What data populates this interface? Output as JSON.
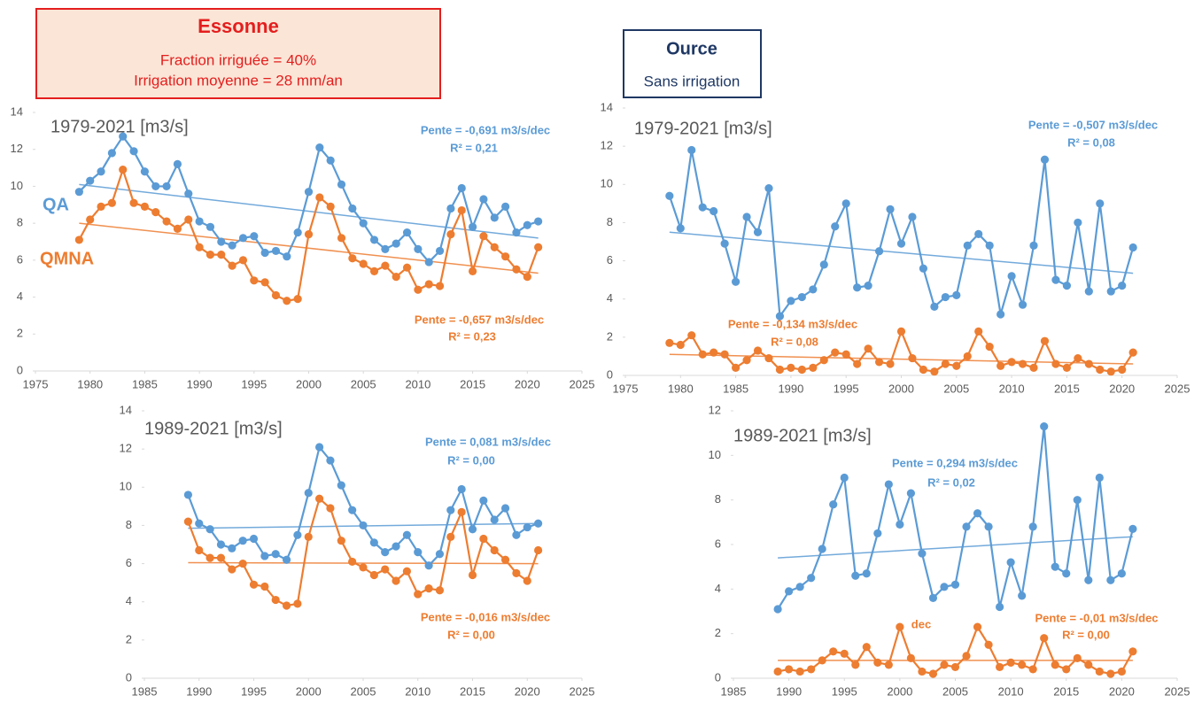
{
  "headers": [
    {
      "title": "Essonne",
      "lines": [
        "Fraction irriguée = 40%",
        "Irrigation moyenne = 28 mm/an"
      ]
    },
    {
      "title": "Ource",
      "lines": [
        "Sans irrigation"
      ]
    }
  ],
  "chart_data": [
    {
      "type": "line",
      "title": "1979-2021 [m3/s]",
      "x": [
        1979,
        1980,
        1981,
        1982,
        1983,
        1984,
        1985,
        1986,
        1987,
        1988,
        1989,
        1990,
        1991,
        1992,
        1993,
        1994,
        1995,
        1996,
        1997,
        1998,
        1999,
        2000,
        2001,
        2002,
        2003,
        2004,
        2005,
        2006,
        2007,
        2008,
        2009,
        2010,
        2011,
        2012,
        2013,
        2014,
        2015,
        2016,
        2017,
        2018,
        2019,
        2020,
        2021
      ],
      "series": [
        {
          "name": "QA",
          "color": "#5b9bd5",
          "values": [
            9.7,
            10.3,
            10.8,
            11.8,
            12.7,
            11.9,
            10.8,
            10.0,
            10.0,
            11.2,
            9.6,
            8.1,
            7.8,
            7.0,
            6.8,
            7.2,
            7.3,
            6.4,
            6.5,
            6.2,
            7.5,
            9.7,
            12.1,
            11.4,
            10.1,
            8.8,
            8.0,
            7.1,
            6.6,
            6.9,
            7.5,
            6.6,
            5.9,
            6.5,
            8.8,
            9.9,
            7.8,
            9.3,
            8.3,
            8.9,
            7.5,
            7.9,
            8.1
          ]
        },
        {
          "name": "QMNA",
          "color": "#ed7d31",
          "values": [
            7.1,
            8.2,
            8.9,
            9.1,
            10.9,
            9.1,
            8.9,
            8.6,
            8.1,
            7.7,
            8.2,
            6.7,
            6.3,
            6.3,
            5.7,
            6.0,
            4.9,
            4.8,
            4.1,
            3.8,
            3.9,
            7.4,
            9.4,
            8.9,
            7.2,
            6.1,
            5.8,
            5.4,
            5.7,
            5.1,
            5.6,
            4.4,
            4.7,
            4.6,
            7.4,
            8.7,
            5.4,
            7.3,
            6.7,
            6.2,
            5.5,
            5.1,
            6.7
          ]
        }
      ],
      "trendlines": [
        {
          "color": "#5b9bd5",
          "x": [
            1979,
            2021
          ],
          "values": [
            10.1,
            7.2
          ]
        },
        {
          "color": "#ed7d31",
          "x": [
            1979,
            2021
          ],
          "values": [
            8.0,
            5.3
          ]
        }
      ],
      "annotations": [
        {
          "text": "Pente =  -0,691 m3/s/dec",
          "color": "#5b9bd5"
        },
        {
          "text": "R² = 0,21",
          "color": "#5b9bd5"
        },
        {
          "text": "Pente = -0,657 m3/s/dec",
          "color": "#ed7d31"
        },
        {
          "text": "R² = 0,23",
          "color": "#ed7d31"
        }
      ],
      "xlim": [
        1975,
        2025
      ],
      "xticks": [
        1975,
        1980,
        1985,
        1990,
        1995,
        2000,
        2005,
        2010,
        2015,
        2020,
        2025
      ],
      "ylim": [
        0,
        14
      ],
      "yticks": [
        0,
        2,
        4,
        6,
        8,
        10,
        12,
        14
      ]
    },
    {
      "type": "line",
      "title": "1979-2021 [m3/s]",
      "x": [
        1979,
        1980,
        1981,
        1982,
        1983,
        1984,
        1985,
        1986,
        1987,
        1988,
        1989,
        1990,
        1991,
        1992,
        1993,
        1994,
        1995,
        1996,
        1997,
        1998,
        1999,
        2000,
        2001,
        2002,
        2003,
        2004,
        2005,
        2006,
        2007,
        2008,
        2009,
        2010,
        2011,
        2012,
        2013,
        2014,
        2015,
        2016,
        2017,
        2018,
        2019,
        2020,
        2021
      ],
      "series": [
        {
          "color": "#5b9bd5",
          "values": [
            9.4,
            7.7,
            11.8,
            8.8,
            8.6,
            6.9,
            4.9,
            8.3,
            7.5,
            9.8,
            3.1,
            3.9,
            4.1,
            4.5,
            5.8,
            7.8,
            9.0,
            4.6,
            4.7,
            6.5,
            8.7,
            6.9,
            8.3,
            5.6,
            3.6,
            4.1,
            4.2,
            6.8,
            7.4,
            6.8,
            3.2,
            5.2,
            3.7,
            6.8,
            11.3,
            5.0,
            4.7,
            8.0,
            4.4,
            9.0,
            4.4,
            4.7,
            6.7
          ]
        },
        {
          "color": "#ed7d31",
          "values": [
            1.7,
            1.6,
            2.1,
            1.1,
            1.2,
            1.1,
            0.4,
            0.8,
            1.3,
            0.9,
            0.3,
            0.4,
            0.3,
            0.4,
            0.8,
            1.2,
            1.1,
            0.6,
            1.4,
            0.7,
            0.6,
            2.3,
            0.9,
            0.3,
            0.2,
            0.6,
            0.5,
            1.0,
            2.3,
            1.5,
            0.5,
            0.7,
            0.6,
            0.4,
            1.8,
            0.6,
            0.4,
            0.9,
            0.6,
            0.3,
            0.2,
            0.3,
            1.2
          ]
        }
      ],
      "trendlines": [
        {
          "color": "#5b9bd5",
          "x": [
            1979,
            2021
          ],
          "values": [
            7.5,
            5.35
          ]
        },
        {
          "color": "#ed7d31",
          "x": [
            1979,
            2021
          ],
          "values": [
            1.1,
            0.6
          ]
        }
      ],
      "annotations": [
        {
          "text": "Pente = -0,507 m3/s/dec",
          "color": "#5b9bd5"
        },
        {
          "text": "R² = 0,08",
          "color": "#5b9bd5"
        },
        {
          "text": "Pente = -0,134 m3/s/dec",
          "color": "#ed7d31"
        },
        {
          "text": "R² = 0,08",
          "color": "#ed7d31"
        }
      ],
      "xlim": [
        1975,
        2025
      ],
      "xticks": [
        1975,
        1980,
        1985,
        1990,
        1995,
        2000,
        2005,
        2010,
        2015,
        2020,
        2025
      ],
      "ylim": [
        0,
        14
      ],
      "yticks": [
        0,
        2,
        4,
        6,
        8,
        10,
        12,
        14
      ]
    },
    {
      "type": "line",
      "title": "1989-2021 [m3/s]",
      "x": [
        1989,
        1990,
        1991,
        1992,
        1993,
        1994,
        1995,
        1996,
        1997,
        1998,
        1999,
        2000,
        2001,
        2002,
        2003,
        2004,
        2005,
        2006,
        2007,
        2008,
        2009,
        2010,
        2011,
        2012,
        2013,
        2014,
        2015,
        2016,
        2017,
        2018,
        2019,
        2020,
        2021
      ],
      "series": [
        {
          "color": "#5b9bd5",
          "values": [
            9.6,
            8.1,
            7.8,
            7.0,
            6.8,
            7.2,
            7.3,
            6.4,
            6.5,
            6.2,
            7.5,
            9.7,
            12.1,
            11.4,
            10.1,
            8.8,
            8.0,
            7.1,
            6.6,
            6.9,
            7.5,
            6.6,
            5.9,
            6.5,
            8.8,
            9.9,
            7.8,
            9.3,
            8.3,
            8.9,
            7.5,
            7.9,
            8.1
          ]
        },
        {
          "color": "#ed7d31",
          "values": [
            8.2,
            6.7,
            6.3,
            6.3,
            5.7,
            6.0,
            4.9,
            4.8,
            4.1,
            3.8,
            3.9,
            7.4,
            9.4,
            8.9,
            7.2,
            6.1,
            5.8,
            5.4,
            5.7,
            5.1,
            5.6,
            4.4,
            4.7,
            4.6,
            7.4,
            8.7,
            5.4,
            7.3,
            6.7,
            6.2,
            5.5,
            5.1,
            6.7
          ]
        }
      ],
      "trendlines": [
        {
          "color": "#5b9bd5",
          "x": [
            1989,
            2021
          ],
          "values": [
            7.85,
            8.1
          ]
        },
        {
          "color": "#ed7d31",
          "x": [
            1989,
            2021
          ],
          "values": [
            6.05,
            6.0
          ]
        }
      ],
      "annotations": [
        {
          "text": "Pente = 0,081 m3/s/dec",
          "color": "#5b9bd5"
        },
        {
          "text": "R² = 0,00",
          "color": "#5b9bd5"
        },
        {
          "text": "Pente = -0,016 m3/s/dec",
          "color": "#ed7d31"
        },
        {
          "text": "R² = 0,00",
          "color": "#ed7d31"
        }
      ],
      "xlim": [
        1985,
        2025
      ],
      "xticks": [
        1985,
        1990,
        1995,
        2000,
        2005,
        2010,
        2015,
        2020,
        2025
      ],
      "ylim": [
        0,
        14
      ],
      "yticks": [
        0,
        2,
        4,
        6,
        8,
        10,
        12,
        14
      ]
    },
    {
      "type": "line",
      "title": "1989-2021 [m3/s]",
      "x": [
        1989,
        1990,
        1991,
        1992,
        1993,
        1994,
        1995,
        1996,
        1997,
        1998,
        1999,
        2000,
        2001,
        2002,
        2003,
        2004,
        2005,
        2006,
        2007,
        2008,
        2009,
        2010,
        2011,
        2012,
        2013,
        2014,
        2015,
        2016,
        2017,
        2018,
        2019,
        2020,
        2021
      ],
      "series": [
        {
          "color": "#5b9bd5",
          "values": [
            3.1,
            3.9,
            4.1,
            4.5,
            5.8,
            7.8,
            9.0,
            4.6,
            4.7,
            6.5,
            8.7,
            6.9,
            8.3,
            5.6,
            3.6,
            4.1,
            4.2,
            6.8,
            7.4,
            6.8,
            3.2,
            5.2,
            3.7,
            6.8,
            11.3,
            5.0,
            4.7,
            8.0,
            4.4,
            9.0,
            4.4,
            4.7,
            6.7
          ]
        },
        {
          "color": "#ed7d31",
          "values": [
            0.3,
            0.4,
            0.3,
            0.4,
            0.8,
            1.2,
            1.1,
            0.6,
            1.4,
            0.7,
            0.6,
            2.3,
            0.9,
            0.3,
            0.2,
            0.6,
            0.5,
            1.0,
            2.3,
            1.5,
            0.5,
            0.7,
            0.6,
            0.4,
            1.8,
            0.6,
            0.4,
            0.9,
            0.6,
            0.3,
            0.2,
            0.3,
            1.2
          ]
        }
      ],
      "trendlines": [
        {
          "color": "#5b9bd5",
          "x": [
            1989,
            2021
          ],
          "values": [
            5.4,
            6.35
          ]
        },
        {
          "color": "#ed7d31",
          "x": [
            1989,
            2021
          ],
          "values": [
            0.8,
            0.8
          ]
        }
      ],
      "annotations": [
        {
          "text": "Pente = 0,294 m3/s/dec",
          "color": "#5b9bd5"
        },
        {
          "text": "R² = 0,02",
          "color": "#5b9bd5"
        },
        {
          "text": "dec",
          "color": "#ed7d31"
        },
        {
          "text": "Pente = -0,01 m3/s/dec",
          "color": "#ed7d31"
        },
        {
          "text": "R² = 0,00",
          "color": "#ed7d31"
        }
      ],
      "xlim": [
        1985,
        2025
      ],
      "xticks": [
        1985,
        1990,
        1995,
        2000,
        2005,
        2010,
        2015,
        2020,
        2025
      ],
      "ylim": [
        0,
        12
      ],
      "yticks": [
        0,
        2,
        4,
        6,
        8,
        10,
        12
      ]
    }
  ]
}
